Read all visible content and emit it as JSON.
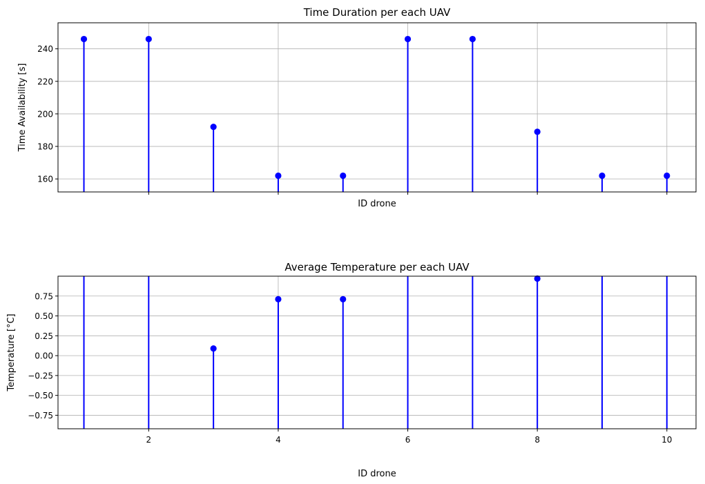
{
  "chart_data": [
    {
      "type": "stem",
      "title": "Time Duration per each UAV",
      "xlabel": "ID drone",
      "ylabel": "Time Availability [s]",
      "x": [
        1,
        2,
        3,
        4,
        5,
        6,
        7,
        8,
        9,
        10
      ],
      "values": [
        246,
        246,
        192,
        162,
        162,
        246,
        246,
        189,
        162,
        162
      ],
      "xlim": [
        0.6,
        10.45
      ],
      "ylim": [
        152,
        256
      ],
      "xticks": [
        2,
        4,
        6,
        8,
        10
      ],
      "xtick_labels_visible": false,
      "yticks": [
        160,
        180,
        200,
        220,
        240
      ],
      "grid": true,
      "color": "#0000ff"
    },
    {
      "type": "stem",
      "title": "Average Temperature per each UAV",
      "xlabel": "ID drone",
      "ylabel": "Temperature [°C]",
      "x": [
        1,
        2,
        3,
        4,
        5,
        6,
        7,
        8,
        9,
        10
      ],
      "values": [
        null,
        null,
        0.09,
        0.71,
        0.71,
        null,
        null,
        0.97,
        null,
        null
      ],
      "xlim": [
        0.6,
        10.45
      ],
      "ylim": [
        -0.92,
        1.0
      ],
      "xticks": [
        2,
        4,
        6,
        8,
        10
      ],
      "xtick_labels_visible": true,
      "yticks": [
        -0.75,
        -0.5,
        -0.25,
        0.0,
        0.25,
        0.5,
        0.75
      ],
      "ytick_labels": [
        "−0.75",
        "−0.50",
        "−0.25",
        "0.00",
        "0.25",
        "0.50",
        "0.75"
      ],
      "grid": true,
      "color": "#0000ff"
    }
  ]
}
